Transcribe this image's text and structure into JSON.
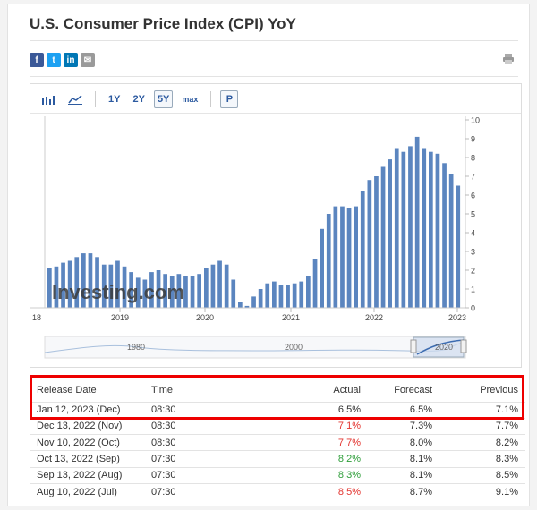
{
  "page": {
    "title": "U.S. Consumer Price Index (CPI) YoY"
  },
  "share": {
    "facebook": "f",
    "twitter": "t",
    "linkedin": "in",
    "email": "✉"
  },
  "toolbar": {
    "r1y": "1Y",
    "r2y": "2Y",
    "r5y": "5Y",
    "rmax": "max",
    "p": "P",
    "selected_range": "5Y"
  },
  "chart_data": {
    "type": "bar",
    "yaxis": {
      "ticks": [
        "0",
        "1",
        "2",
        "3",
        "4",
        "5",
        "6",
        "7",
        "8",
        "9",
        "10"
      ],
      "ylim": [
        0,
        10
      ],
      "position": "right"
    },
    "xaxis": {
      "ticks": [
        "18",
        "2019",
        "2020",
        "2021",
        "2022",
        "2023"
      ]
    },
    "watermark": "Investing.com",
    "bar_color": "#5b85bf",
    "values": [
      2.1,
      2.2,
      2.4,
      2.5,
      2.7,
      2.9,
      2.9,
      2.7,
      2.3,
      2.3,
      2.5,
      2.2,
      1.9,
      1.6,
      1.5,
      1.9,
      2.0,
      1.8,
      1.7,
      1.8,
      1.7,
      1.7,
      1.8,
      2.1,
      2.3,
      2.5,
      2.3,
      1.5,
      0.3,
      0.1,
      0.6,
      1.0,
      1.3,
      1.4,
      1.2,
      1.2,
      1.3,
      1.4,
      1.7,
      2.6,
      4.2,
      5.0,
      5.4,
      5.4,
      5.3,
      5.4,
      6.2,
      6.8,
      7.0,
      7.5,
      7.9,
      8.5,
      8.3,
      8.6,
      9.1,
      8.5,
      8.3,
      8.2,
      7.7,
      7.1,
      6.5
    ],
    "navigator": {
      "labels": [
        "1980",
        "2000",
        "2020"
      ]
    }
  },
  "table": {
    "headers": {
      "release_date": "Release Date",
      "time": "Time",
      "actual": "Actual",
      "forecast": "Forecast",
      "previous": "Previous"
    },
    "rows": [
      {
        "date": "Jan 12, 2023 (Dec)",
        "time": "08:30",
        "actual": "6.5%",
        "forecast": "6.5%",
        "previous": "7.1%",
        "status": "neutral"
      },
      {
        "date": "Dec 13, 2022 (Nov)",
        "time": "08:30",
        "actual": "7.1%",
        "forecast": "7.3%",
        "previous": "7.7%",
        "status": "red"
      },
      {
        "date": "Nov 10, 2022 (Oct)",
        "time": "08:30",
        "actual": "7.7%",
        "forecast": "8.0%",
        "previous": "8.2%",
        "status": "red"
      },
      {
        "date": "Oct 13, 2022 (Sep)",
        "time": "07:30",
        "actual": "8.2%",
        "forecast": "8.1%",
        "previous": "8.3%",
        "status": "green"
      },
      {
        "date": "Sep 13, 2022 (Aug)",
        "time": "07:30",
        "actual": "8.3%",
        "forecast": "8.1%",
        "previous": "8.5%",
        "status": "green"
      },
      {
        "date": "Aug 10, 2022 (Jul)",
        "time": "07:30",
        "actual": "8.5%",
        "forecast": "8.7%",
        "previous": "9.1%",
        "status": "red"
      }
    ]
  },
  "colors": {
    "accent": "#2c5aa0",
    "negative": "#e3342f",
    "positive": "#2e9e3a",
    "highlight": "#ee0000"
  }
}
